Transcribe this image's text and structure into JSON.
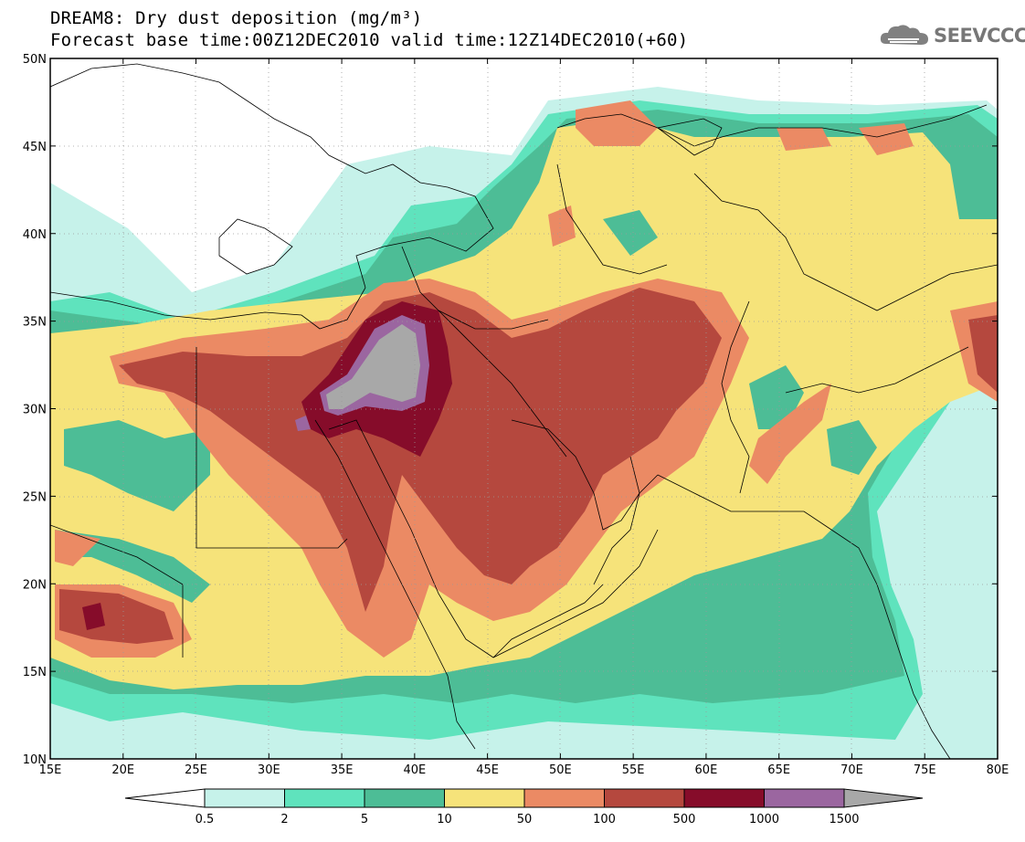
{
  "title": {
    "line1": "DREAM8: Dry dust deposition (mg/m³)",
    "line2": "Forecast base time:00Z12DEC2010 valid time:12Z14DEC2010(+60)"
  },
  "logo": {
    "text": "SEEVCCC",
    "icon": "cloud-icon"
  },
  "map": {
    "lon_range": [
      15,
      80
    ],
    "lat_range": [
      10,
      50
    ],
    "lon_ticks": [
      "15E",
      "20E",
      "25E",
      "30E",
      "35E",
      "40E",
      "45E",
      "50E",
      "55E",
      "60E",
      "65E",
      "70E",
      "75E",
      "80E"
    ],
    "lat_ticks": [
      "10N",
      "15N",
      "20N",
      "25N",
      "30N",
      "35N",
      "40N",
      "45N",
      "50N"
    ],
    "grid": "dotted"
  },
  "colorbar": {
    "labels": [
      "0.5",
      "2",
      "5",
      "10",
      "50",
      "100",
      "500",
      "1000",
      "1500"
    ],
    "colors": [
      "#c6f2ea",
      "#5fe3bd",
      "#4dbd96",
      "#f6e37a",
      "#eb8a64",
      "#b5483e",
      "#860c2a",
      "#9b66a0"
    ],
    "under_color": "#ffffff",
    "over_color": "#a8a8a8"
  },
  "colors": {
    "c1": "#c6f2ea",
    "c2": "#5fe3bd",
    "c3": "#4dbd96",
    "c4": "#f6e37a",
    "c5": "#eb8a64",
    "c6": "#b5483e",
    "c7": "#860c2a",
    "c8": "#9b66a0",
    "c9": "#a8a8a8"
  }
}
